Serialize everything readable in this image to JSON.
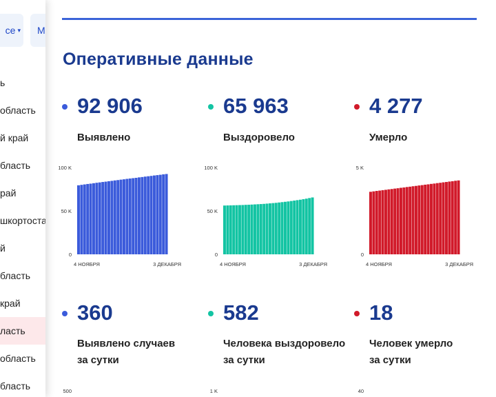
{
  "sidebar": {
    "region_select": "се",
    "region_tab2": "М",
    "items": [
      {
        "label": "ь",
        "active": false
      },
      {
        "label": "область",
        "active": false
      },
      {
        "label": "й край",
        "active": false
      },
      {
        "label": "бласть",
        "active": false
      },
      {
        "label": "рай",
        "active": false
      },
      {
        "label": "шкортоста",
        "active": false
      },
      {
        "label": "й",
        "active": false
      },
      {
        "label": "бласть",
        "active": false
      },
      {
        "label": "край",
        "active": false
      },
      {
        "label": "ласть",
        "active": true
      },
      {
        "label": "область",
        "active": false
      },
      {
        "label": "бласть",
        "active": false
      }
    ]
  },
  "main": {
    "title": "Оперативные данные",
    "stats": [
      {
        "value": "92 906",
        "label1": "Выявлено",
        "label2": "",
        "color": "#3b5bdb"
      },
      {
        "value": "65 963",
        "label1": "Выздоровело",
        "label2": "",
        "color": "#13c4a3"
      },
      {
        "value": "4 277",
        "label1": "Умерло",
        "label2": "",
        "color": "#d11a2a"
      },
      {
        "value": "360",
        "label1": "Выявлено случаев",
        "label2": "за сутки",
        "color": "#3b5bdb"
      },
      {
        "value": "582",
        "label1": "Человека выздоровело",
        "label2": "за сутки",
        "color": "#13c4a3"
      },
      {
        "value": "18",
        "label1": "Человек умерло",
        "label2": "за сутки",
        "color": "#d11a2a"
      }
    ]
  },
  "chart_data": [
    {
      "type": "bar",
      "color": "#3b5bdb",
      "y_ticks": [
        "100 K",
        "50 K",
        "0"
      ],
      "ylim": [
        0,
        100000
      ],
      "x_start": "4 НОЯБРЯ",
      "x_end": "3 ДЕКАБРЯ",
      "values": [
        79500,
        80000,
        80500,
        81000,
        81400,
        81900,
        82400,
        82800,
        83300,
        83700,
        84200,
        84600,
        85100,
        85500,
        86000,
        86400,
        86900,
        87300,
        87700,
        88100,
        88600,
        89000,
        89500,
        89900,
        90300,
        90800,
        91200,
        91600,
        92100,
        92500
      ]
    },
    {
      "type": "bar",
      "color": "#13c4a3",
      "y_ticks": [
        "100 K",
        "50 K",
        "0"
      ],
      "ylim": [
        0,
        100000
      ],
      "x_start": "4 НОЯБРЯ",
      "x_end": "3 ДЕКАБРЯ",
      "values": [
        56200,
        56300,
        56400,
        56500,
        56600,
        56700,
        56800,
        57000,
        57100,
        57300,
        57500,
        57700,
        57900,
        58100,
        58400,
        58700,
        59000,
        59300,
        59700,
        60100,
        60500,
        60900,
        61400,
        61900,
        62400,
        62900,
        63500,
        64100,
        64800,
        65500
      ]
    },
    {
      "type": "bar",
      "color": "#d11a2a",
      "y_ticks": [
        "5 K",
        "0"
      ],
      "ylim": [
        0,
        5000
      ],
      "x_start": "4 НОЯБРЯ",
      "x_end": "3 ДЕКАБРЯ",
      "values": [
        3600,
        3625,
        3650,
        3670,
        3695,
        3715,
        3740,
        3760,
        3785,
        3805,
        3830,
        3850,
        3875,
        3895,
        3920,
        3940,
        3965,
        3985,
        4010,
        4030,
        4055,
        4075,
        4100,
        4120,
        4145,
        4165,
        4190,
        4210,
        4235,
        4255
      ]
    },
    {
      "type": "bar",
      "color": "#3b5bdb",
      "y_ticks": [
        "500"
      ],
      "values": []
    },
    {
      "type": "bar",
      "color": "#13c4a3",
      "y_ticks": [
        "1 K"
      ],
      "values": []
    },
    {
      "type": "bar",
      "color": "#d11a2a",
      "y_ticks": [
        "40"
      ],
      "values": []
    }
  ]
}
